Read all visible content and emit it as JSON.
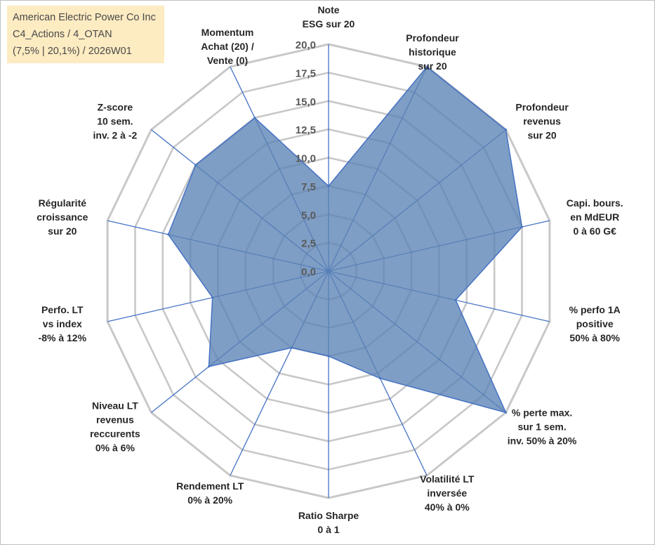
{
  "title": {
    "line1": "American Electric Power Co Inc",
    "line2": "C4_Actions / 4_OTAN",
    "line3": "(7,5% | 20,1%) / 2026W01"
  },
  "colors": {
    "fill": "#5b83b5",
    "line": "#4472c4",
    "grid": "#c8c8c8",
    "spoke": "#4472c4",
    "title_bg": "#fdeabf"
  },
  "chart_data": {
    "type": "radar",
    "rmin": 0,
    "rmax": 20,
    "tick_labels": [
      "0,0",
      "2,5",
      "5,0",
      "7,5",
      "10,0",
      "12,5",
      "15,0",
      "17,5",
      "20,0"
    ],
    "axes": [
      {
        "lines": [
          "Note",
          "ESG sur 20"
        ],
        "value": 7.5
      },
      {
        "lines": [
          "Profondeur",
          "historique",
          "sur 20"
        ],
        "value": 20
      },
      {
        "lines": [
          "Profondeur",
          "revenus",
          "sur 20"
        ],
        "value": 20
      },
      {
        "lines": [
          "Capi. bours.",
          "en MdEUR",
          "0 à 60 G€"
        ],
        "value": 17.5
      },
      {
        "lines": [
          "% perfo 1A",
          "positive",
          "50% à 80%"
        ],
        "value": 11.5
      },
      {
        "lines": [
          "% perte max.",
          "sur 1 sem.",
          "inv. 50% à 20%"
        ],
        "value": 20
      },
      {
        "lines": [
          "Volatilité LT",
          "inversée",
          "40% à 0%"
        ],
        "value": 10.5
      },
      {
        "lines": [
          "Ratio Sharpe",
          "0 à 1"
        ],
        "value": 7.5
      },
      {
        "lines": [
          "Rendement LT",
          "0% à 20%"
        ],
        "value": 7.5
      },
      {
        "lines": [
          "Niveau LT",
          "revenus",
          "reccurents",
          "0% à 6%"
        ],
        "value": 13.5
      },
      {
        "lines": [
          "Perfo. LT",
          "vs index",
          "-8% à 12%"
        ],
        "value": 10.5
      },
      {
        "lines": [
          "Régularité",
          "croissance",
          "sur 20"
        ],
        "value": 14.5
      },
      {
        "lines": [
          "Z-score",
          "10 sem.",
          "inv. 2 à -2"
        ],
        "value": 15
      },
      {
        "lines": [
          "Momentum",
          "Achat (20) /",
          "Vente (0)"
        ],
        "value": 15
      }
    ]
  }
}
